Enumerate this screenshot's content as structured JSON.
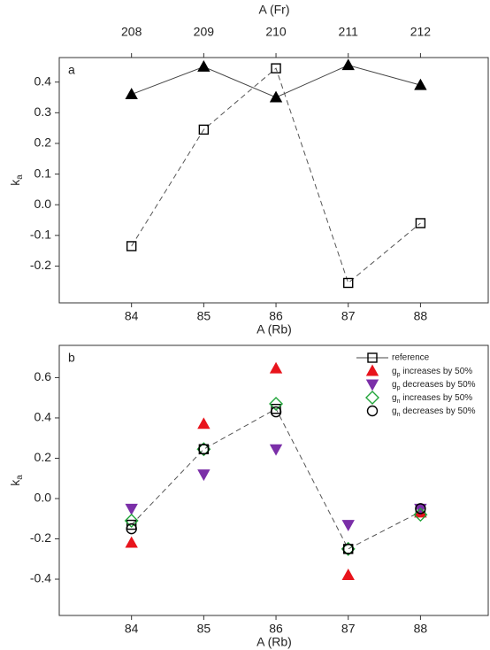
{
  "chart_data": [
    {
      "type": "line",
      "panel_label": "a",
      "xlabel": "A (Rb)",
      "ylabel": "ka",
      "x2label": "A (Fr)",
      "x": [
        84,
        85,
        86,
        87,
        88
      ],
      "xlim": [
        83.0,
        88.95
      ],
      "xticks": [
        84,
        85,
        86,
        87,
        88
      ],
      "x2lim": [
        207.0,
        212.95
      ],
      "x2ticks": [
        208,
        209,
        210,
        211,
        212
      ],
      "ylim": [
        -0.32,
        0.48
      ],
      "yticks": [
        -0.2,
        -0.1,
        {
          "value": 0,
          "label": "0.0"
        },
        0.1,
        0.2,
        0.3,
        0.4
      ],
      "series": [
        {
          "color": "#000000",
          "marker": "triangle-up",
          "filled": true,
          "line": "solid",
          "values": [
            0.36,
            0.45,
            0.35,
            0.455,
            0.39
          ]
        },
        {
          "color": "#000000",
          "marker": "square",
          "filled": false,
          "line": "dashed",
          "values": [
            -0.135,
            0.245,
            0.445,
            -0.255,
            -0.06
          ]
        }
      ]
    },
    {
      "type": "line",
      "panel_label": "b",
      "xlabel": "A (Rb)",
      "ylabel": "ka",
      "x": [
        84,
        85,
        86,
        87,
        88
      ],
      "xlim": [
        83.0,
        88.95
      ],
      "xticks": [
        84,
        85,
        86,
        87,
        88
      ],
      "ylim": [
        -0.58,
        0.76
      ],
      "yticks": [
        -0.4,
        -0.2,
        {
          "value": 0,
          "label": "0.0"
        },
        0.2,
        0.4,
        0.6
      ],
      "legend": "upper right",
      "series": [
        {
          "name": "reference",
          "color": "#000000",
          "marker": "square",
          "filled": false,
          "line": "dashed",
          "values": [
            -0.13,
            0.245,
            0.445,
            -0.25,
            -0.065
          ]
        },
        {
          "name": "gp increases by 50%",
          "color": "#e8141c",
          "marker": "triangle-up",
          "filled": true,
          "values": [
            -0.22,
            0.37,
            0.645,
            -0.38,
            -0.07
          ]
        },
        {
          "name": "gp decreases by 50%",
          "color": "#7b2fa8",
          "marker": "triangle-down",
          "filled": true,
          "values": [
            -0.05,
            0.12,
            0.245,
            -0.13,
            -0.05
          ]
        },
        {
          "name": "gn increases by 50%",
          "color": "#22a53a",
          "marker": "diamond",
          "filled": false,
          "values": [
            -0.11,
            0.245,
            0.47,
            -0.25,
            -0.08
          ]
        },
        {
          "name": "gn decreases by 50%",
          "color": "#000000",
          "marker": "circle",
          "filled": false,
          "values": [
            -0.15,
            0.245,
            0.43,
            -0.25,
            -0.05
          ]
        }
      ]
    }
  ]
}
